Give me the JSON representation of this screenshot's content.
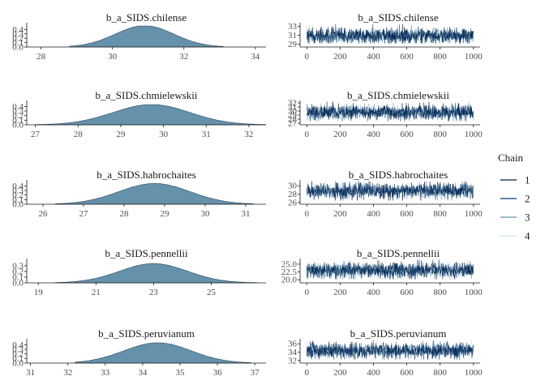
{
  "chart_data": [
    {
      "row": 0,
      "density": {
        "type": "area",
        "title": "b_a_SIDS.chilense",
        "xlim": [
          27.6,
          34.3
        ],
        "xticks": [
          28,
          30,
          32,
          34
        ],
        "ylim": [
          0,
          0.48
        ],
        "yticks": [
          "0.0",
          "0.1",
          "0.2",
          "0.3",
          "0.4"
        ],
        "mean": 30.9,
        "sd": 0.82,
        "support": [
          28.8,
          33.1
        ],
        "fill": "#6591ab"
      },
      "trace": {
        "type": "line",
        "title": "b_a_SIDS.chilense",
        "xlim": [
          -40,
          1040
        ],
        "xticks": [
          0,
          200,
          400,
          600,
          800,
          1000
        ],
        "yticks": [
          29,
          31,
          33
        ],
        "ylim": [
          28.4,
          33.8
        ],
        "center": 30.9,
        "band": 0.85
      }
    },
    {
      "row": 1,
      "density": {
        "type": "area",
        "title": "b_a_SIDS.chmielewskii",
        "xlim": [
          26.8,
          32.4
        ],
        "xticks": [
          27,
          28,
          29,
          30,
          31,
          32
        ],
        "ylim": [
          0,
          0.46
        ],
        "yticks": [
          "0.0",
          "0.1",
          "0.2",
          "0.3",
          "0.4"
        ],
        "mean": 29.72,
        "sd": 0.9,
        "support": [
          27.0,
          32.4
        ],
        "fill": "#6591ab"
      },
      "trace": {
        "type": "line",
        "title": "b_a_SIDS.chmielewskii",
        "xlim": [
          -40,
          1040
        ],
        "xticks": [
          0,
          200,
          400,
          600,
          800,
          1000
        ],
        "yticks": [
          27,
          28,
          29,
          30,
          31,
          32
        ],
        "ylim": [
          26.6,
          32.6
        ],
        "center": 29.7,
        "band": 0.9
      }
    },
    {
      "row": 2,
      "density": {
        "type": "area",
        "title": "b_a_SIDS.habrochaites",
        "xlim": [
          25.6,
          31.5
        ],
        "xticks": [
          26,
          27,
          28,
          29,
          30,
          31
        ],
        "ylim": [
          0,
          0.46
        ],
        "yticks": [
          "0.0",
          "0.1",
          "0.2",
          "0.3",
          "0.4"
        ],
        "mean": 28.75,
        "sd": 0.88,
        "support": [
          26.3,
          31.2
        ],
        "fill": "#6591ab"
      },
      "trace": {
        "type": "line",
        "title": "b_a_SIDS.habrochaites",
        "xlim": [
          -40,
          1040
        ],
        "xticks": [
          0,
          200,
          400,
          600,
          800,
          1000
        ],
        "yticks": [
          26,
          28,
          30
        ],
        "ylim": [
          25.6,
          31.4
        ],
        "center": 28.75,
        "band": 0.9
      }
    },
    {
      "row": 3,
      "density": {
        "type": "area",
        "title": "b_a_SIDS.pennellii",
        "xlim": [
          18.6,
          26.9
        ],
        "xticks": [
          19,
          21,
          23,
          25
        ],
        "ylim": [
          0,
          0.37
        ],
        "yticks": [
          "0.0",
          "0.1",
          "0.2",
          "0.3"
        ],
        "mean": 23.0,
        "sd": 1.18,
        "support": [
          19.6,
          26.6
        ],
        "fill": "#6591ab"
      },
      "trace": {
        "type": "line",
        "title": "b_a_SIDS.pennellii",
        "xlim": [
          -40,
          1040
        ],
        "xticks": [
          0,
          200,
          400,
          600,
          800,
          1000
        ],
        "yticks": [
          "20.0",
          "22.5",
          "25.0"
        ],
        "ylim": [
          19.0,
          26.8
        ],
        "center": 23.0,
        "band": 1.2
      }
    },
    {
      "row": 4,
      "density": {
        "type": "area",
        "title": "b_a_SIDS.peruvianum",
        "xlim": [
          30.9,
          37.3
        ],
        "xticks": [
          31,
          32,
          33,
          34,
          35,
          36,
          37
        ],
        "ylim": [
          0,
          0.46
        ],
        "yticks": [
          "0.0",
          "0.1",
          "0.2",
          "0.3",
          "0.4"
        ],
        "mean": 34.4,
        "sd": 0.9,
        "support": [
          32.2,
          36.9
        ],
        "fill": "#6591ab"
      },
      "trace": {
        "type": "line",
        "title": "b_a_SIDS.peruvianum",
        "xlim": [
          -40,
          1040
        ],
        "xticks": [
          0,
          200,
          400,
          600,
          800,
          1000
        ],
        "yticks": [
          32,
          34,
          36
        ],
        "ylim": [
          31.4,
          37.2
        ],
        "center": 34.4,
        "band": 0.9
      }
    }
  ],
  "legend": {
    "title": "Chain",
    "items": [
      {
        "label": "1",
        "color": "#011f4b"
      },
      {
        "label": "2",
        "color": "#03396c"
      },
      {
        "label": "3",
        "color": "#6497b1"
      },
      {
        "label": "4",
        "color": "#d1e1ec"
      }
    ]
  }
}
